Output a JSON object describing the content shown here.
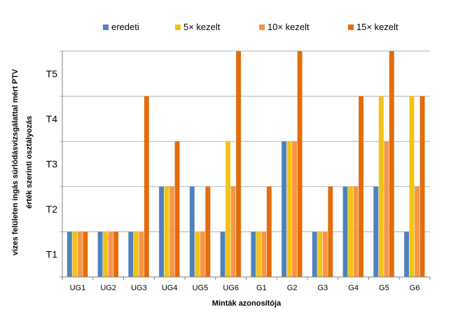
{
  "chart_data": {
    "type": "bar",
    "categories": [
      "UG1",
      "UG2",
      "UG3",
      "UG4",
      "UG5",
      "UG6",
      "G1",
      "G2",
      "G3",
      "G4",
      "G5",
      "G6"
    ],
    "series": [
      {
        "name": "eredeti",
        "color": "#4f81bd",
        "values": [
          1.5,
          1.5,
          1.5,
          2.5,
          2.5,
          1.5,
          1.5,
          3.5,
          1.5,
          2.5,
          2.5,
          1.5
        ]
      },
      {
        "name": "5× kezelt",
        "color": "#f2c314",
        "values": [
          1.5,
          1.5,
          1.5,
          2.5,
          1.5,
          3.5,
          1.5,
          3.5,
          1.5,
          2.5,
          4.5,
          4.5
        ]
      },
      {
        "name": "10× kezelt",
        "color": "#f79646",
        "values": [
          1.5,
          1.5,
          1.5,
          2.5,
          1.5,
          2.5,
          1.5,
          3.5,
          1.5,
          2.5,
          3.5,
          2.5
        ]
      },
      {
        "name": "15× kezelt",
        "color": "#e46c0a",
        "values": [
          1.5,
          1.5,
          4.5,
          3.5,
          2.5,
          5.5,
          2.5,
          5.5,
          2.5,
          4.5,
          5.5,
          4.5
        ]
      }
    ],
    "y_ticks": [
      {
        "label": "T1",
        "value": 1
      },
      {
        "label": "T2",
        "value": 2
      },
      {
        "label": "T3",
        "value": 3
      },
      {
        "label": "T4",
        "value": 4
      },
      {
        "label": "T5",
        "value": 5
      }
    ],
    "gridlines": [
      1.5,
      2.5,
      3.5,
      4.5,
      5.5
    ],
    "ylim": [
      0.5,
      5.5
    ],
    "xlabel": "Minták azonosítója",
    "ylabel_line1": "vizes felületen ingás súrlódásvizsgálattal mért PTV",
    "ylabel_line2": "érték szerinti osztályozás",
    "legend_position": "top",
    "grid": true,
    "grid_color": "#b3b3b3",
    "axis_color": "#808080"
  }
}
